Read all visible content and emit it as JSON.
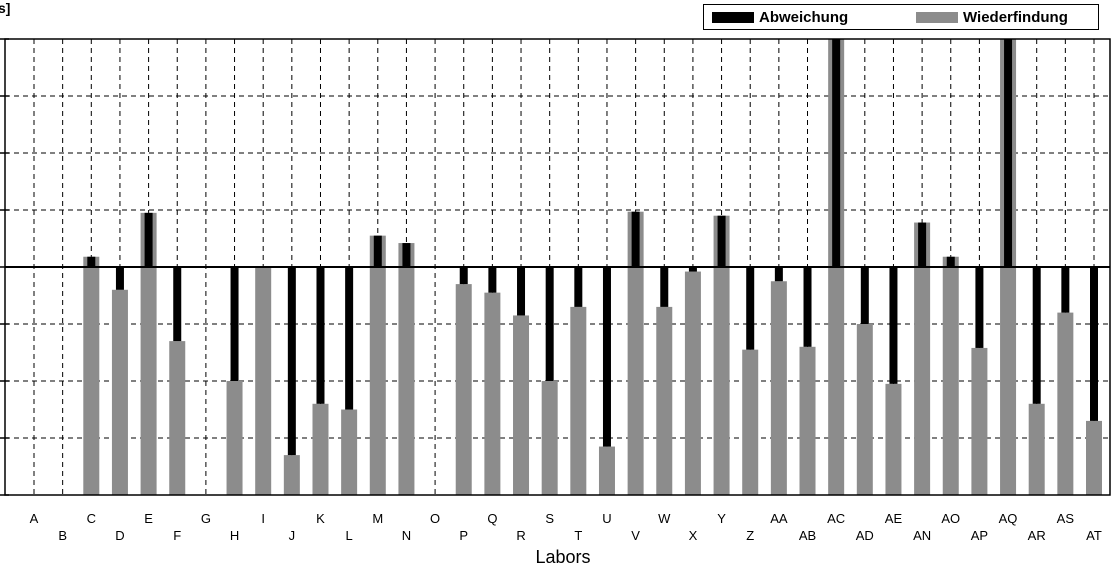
{
  "y_unit_fragment": "s]",
  "chart_data": {
    "type": "bar",
    "xlabel": "Labors",
    "ylabel": "",
    "ylim": [
      0,
      8
    ],
    "baseline": 4,
    "grid": true,
    "legend_position": "top-right",
    "colors": {
      "abweichung": "#000000",
      "wiederfindung": "#8c8c8c"
    },
    "categories": [
      "A",
      "B",
      "C",
      "D",
      "E",
      "F",
      "G",
      "H",
      "I",
      "J",
      "K",
      "L",
      "M",
      "N",
      "O",
      "P",
      "Q",
      "R",
      "S",
      "T",
      "U",
      "V",
      "W",
      "X",
      "Y",
      "Z",
      "AA",
      "AB",
      "AC",
      "AD",
      "AE",
      "AN",
      "AO",
      "AP",
      "AQ",
      "AR",
      "AS",
      "AT"
    ],
    "series": [
      {
        "name": "Abweichung",
        "values": [
          null,
          null,
          4.18,
          3.6,
          4.95,
          2.7,
          null,
          2,
          4,
          0.7,
          1.6,
          1.5,
          4.55,
          4.42,
          null,
          3.7,
          3.55,
          3.15,
          2,
          3.3,
          0.85,
          4.97,
          3.3,
          3.92,
          4.9,
          2.55,
          3.75,
          2.6,
          8,
          3,
          1.95,
          4.78,
          4.18,
          2.58,
          8,
          1.6,
          3.2,
          1.3
        ]
      },
      {
        "name": "Wiederfindung",
        "values": [
          null,
          null,
          4.18,
          3.6,
          4.95,
          2.7,
          null,
          2,
          4,
          0.7,
          1.6,
          1.5,
          4.55,
          4.42,
          null,
          3.7,
          3.55,
          3.15,
          2,
          3.3,
          0.85,
          4.97,
          3.3,
          3.92,
          4.9,
          2.55,
          3.75,
          2.6,
          8,
          3,
          1.95,
          4.78,
          4.18,
          2.58,
          8,
          1.6,
          3.2,
          1.3
        ]
      }
    ]
  }
}
